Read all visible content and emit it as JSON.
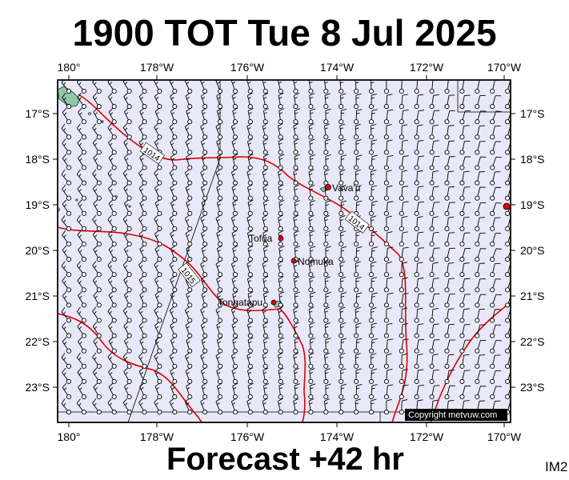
{
  "title": "1900 TOT Tue 8 Jul 2025",
  "footer": "Forecast +42 hr",
  "image_code": "IM2",
  "copyright": "Copyright metvuw.com",
  "map": {
    "lon_labels": [
      "180°",
      "178°W",
      "176°W",
      "174°W",
      "172°W",
      "170°W"
    ],
    "lat_labels": [
      "17°S",
      "18°S",
      "19°S",
      "20°S",
      "21°S",
      "22°S",
      "23°S"
    ],
    "places": [
      {
        "name": "Vava'u"
      },
      {
        "name": "Tofua"
      },
      {
        "name": "Nomuka"
      },
      {
        "name": "Tongatapu"
      }
    ],
    "isobars": [
      {
        "label": "1014"
      },
      {
        "label": "1014"
      },
      {
        "label": "1015"
      }
    ],
    "colors": {
      "ocean": "#e8e8f8",
      "isobar": "#e00000",
      "barb": "#000000",
      "place_marker": "#e00000",
      "land": "#8fc8a8"
    }
  }
}
